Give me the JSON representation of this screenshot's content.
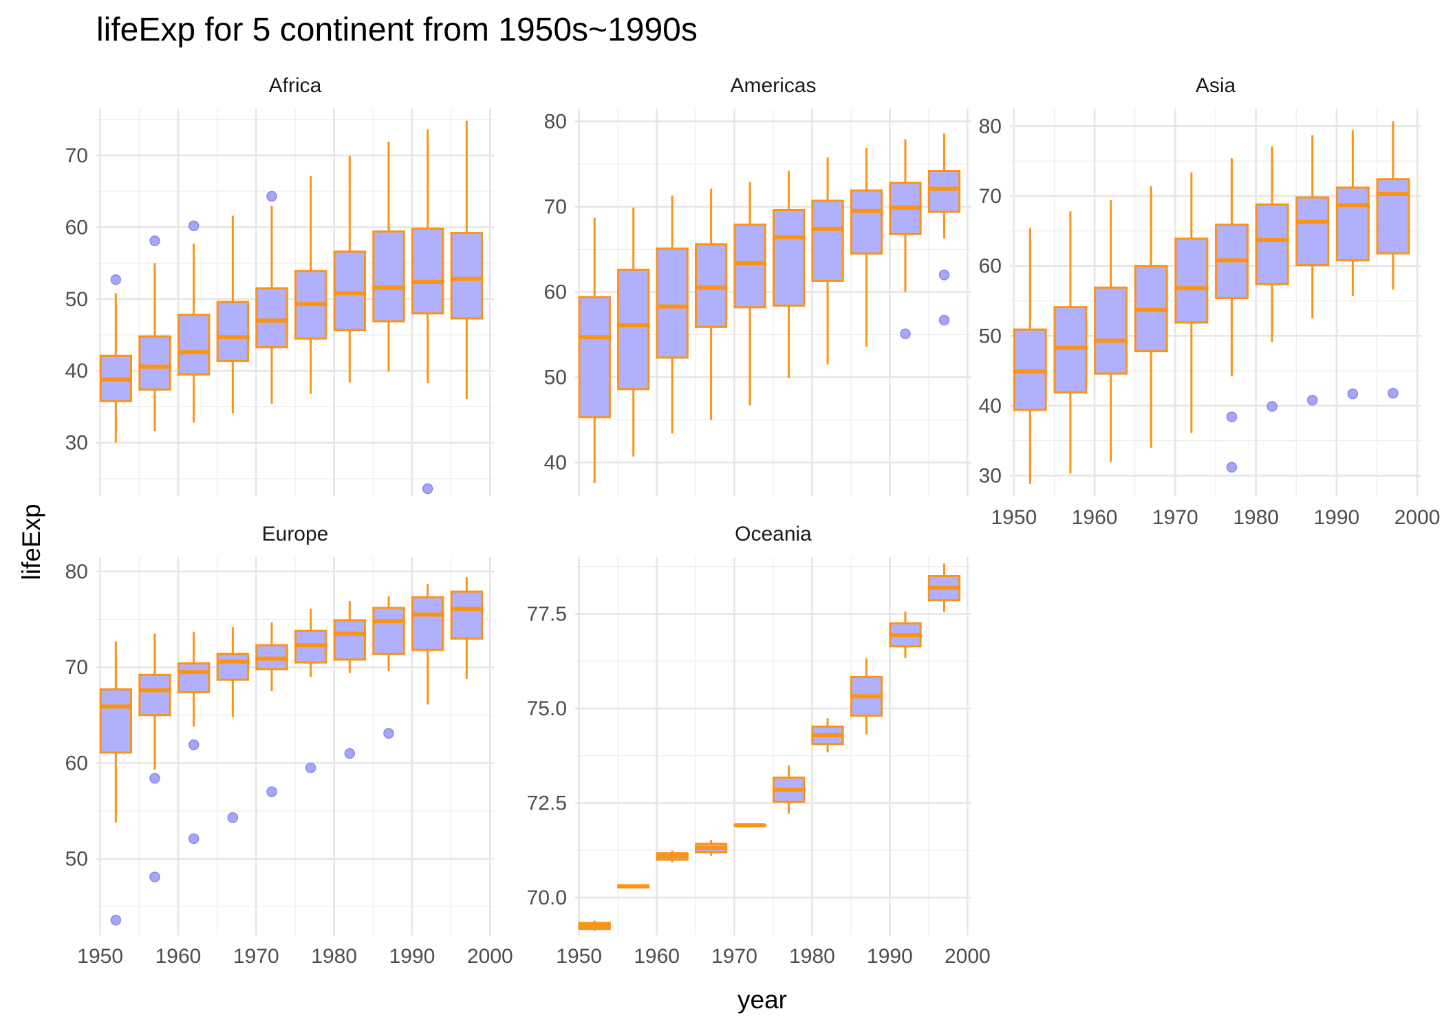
{
  "chart_data": {
    "type": "boxplot",
    "title": "lifeExp for 5 continent from 1950s~1990s",
    "xlabel": "year",
    "ylabel": "lifeExp",
    "x_ticks": [
      "1950",
      "1960",
      "1970",
      "1980",
      "1990",
      "2000"
    ],
    "x_tick_values": [
      1950,
      1960,
      1970,
      1980,
      1990,
      2000
    ],
    "xlim": [
      1949.5,
      2000.5
    ],
    "box_fill": "#b0b0fc",
    "box_outline": "#fb9315",
    "outlier_color": "#a6a6f7",
    "grid": true,
    "panels": [
      {
        "name": "Africa",
        "ylim": [
          22.5,
          76.5
        ],
        "y_tick_values": [
          30,
          40,
          50,
          60,
          70
        ],
        "y_ticks": [
          "30",
          "40",
          "50",
          "60",
          "70"
        ],
        "y_minor": [
          25,
          35,
          45,
          55,
          65,
          75
        ],
        "boxes": [
          {
            "year": 1952,
            "min": 30.0,
            "q1": 35.8,
            "median": 38.8,
            "q3": 42.1,
            "max": 50.8,
            "outliers": [
              52.7
            ]
          },
          {
            "year": 1957,
            "min": 31.6,
            "q1": 37.4,
            "median": 40.6,
            "q3": 44.8,
            "max": 55.0,
            "outliers": [
              58.1
            ]
          },
          {
            "year": 1962,
            "min": 32.8,
            "q1": 39.5,
            "median": 42.6,
            "q3": 47.8,
            "max": 57.7,
            "outliers": [
              60.2
            ]
          },
          {
            "year": 1967,
            "min": 34.1,
            "q1": 41.4,
            "median": 44.7,
            "q3": 49.6,
            "max": 61.6,
            "outliers": []
          },
          {
            "year": 1972,
            "min": 35.4,
            "q1": 43.3,
            "median": 47.0,
            "q3": 51.5,
            "max": 63.0,
            "outliers": [
              64.3
            ]
          },
          {
            "year": 1977,
            "min": 36.8,
            "q1": 44.5,
            "median": 49.3,
            "q3": 53.9,
            "max": 67.1,
            "outliers": []
          },
          {
            "year": 1982,
            "min": 38.4,
            "q1": 45.7,
            "median": 50.8,
            "q3": 56.6,
            "max": 69.9,
            "outliers": []
          },
          {
            "year": 1987,
            "min": 39.9,
            "q1": 46.9,
            "median": 51.6,
            "q3": 59.4,
            "max": 71.9,
            "outliers": []
          },
          {
            "year": 1992,
            "min": 38.3,
            "q1": 48.0,
            "median": 52.4,
            "q3": 59.8,
            "max": 73.6,
            "outliers": [
              23.6
            ]
          },
          {
            "year": 1997,
            "min": 36.1,
            "q1": 47.3,
            "median": 52.8,
            "q3": 59.2,
            "max": 74.8,
            "outliers": []
          }
        ]
      },
      {
        "name": "Americas",
        "ylim": [
          36.0,
          81.5
        ],
        "y_tick_values": [
          40,
          50,
          60,
          70,
          80
        ],
        "y_ticks": [
          "40",
          "50",
          "60",
          "70",
          "80"
        ],
        "y_minor": [
          45,
          55,
          65,
          75
        ],
        "boxes": [
          {
            "year": 1952,
            "min": 37.6,
            "q1": 45.3,
            "median": 54.7,
            "q3": 59.4,
            "max": 68.7,
            "outliers": []
          },
          {
            "year": 1957,
            "min": 40.7,
            "q1": 48.6,
            "median": 56.1,
            "q3": 62.6,
            "max": 69.9,
            "outliers": []
          },
          {
            "year": 1962,
            "min": 43.4,
            "q1": 52.3,
            "median": 58.3,
            "q3": 65.1,
            "max": 71.3,
            "outliers": []
          },
          {
            "year": 1967,
            "min": 45.0,
            "q1": 55.9,
            "median": 60.5,
            "q3": 65.6,
            "max": 72.1,
            "outliers": []
          },
          {
            "year": 1972,
            "min": 46.7,
            "q1": 58.2,
            "median": 63.4,
            "q3": 67.9,
            "max": 72.9,
            "outliers": []
          },
          {
            "year": 1977,
            "min": 49.9,
            "q1": 58.4,
            "median": 66.4,
            "q3": 69.6,
            "max": 74.2,
            "outliers": []
          },
          {
            "year": 1982,
            "min": 51.5,
            "q1": 61.3,
            "median": 67.4,
            "q3": 70.7,
            "max": 75.8,
            "outliers": []
          },
          {
            "year": 1987,
            "min": 53.6,
            "q1": 64.5,
            "median": 69.5,
            "q3": 71.9,
            "max": 76.9,
            "outliers": []
          },
          {
            "year": 1992,
            "min": 60.0,
            "q1": 66.8,
            "median": 69.9,
            "q3": 72.8,
            "max": 77.9,
            "outliers": [
              55.1
            ]
          },
          {
            "year": 1997,
            "min": 66.3,
            "q1": 69.4,
            "median": 72.1,
            "q3": 74.2,
            "max": 78.6,
            "outliers": [
              62.0,
              56.7
            ]
          }
        ]
      },
      {
        "name": "Asia",
        "ylim": [
          27.0,
          82.5
        ],
        "y_tick_values": [
          30,
          40,
          50,
          60,
          70,
          80
        ],
        "y_ticks": [
          "30",
          "40",
          "50",
          "60",
          "70",
          "80"
        ],
        "y_minor": [
          35,
          45,
          55,
          65,
          75
        ],
        "boxes": [
          {
            "year": 1952,
            "min": 28.8,
            "q1": 39.4,
            "median": 44.9,
            "q3": 50.9,
            "max": 65.4,
            "outliers": []
          },
          {
            "year": 1957,
            "min": 30.3,
            "q1": 41.9,
            "median": 48.3,
            "q3": 54.1,
            "max": 67.8,
            "outliers": []
          },
          {
            "year": 1962,
            "min": 32.0,
            "q1": 44.6,
            "median": 49.3,
            "q3": 56.9,
            "max": 69.4,
            "outliers": []
          },
          {
            "year": 1967,
            "min": 34.0,
            "q1": 47.8,
            "median": 53.7,
            "q3": 60.0,
            "max": 71.4,
            "outliers": []
          },
          {
            "year": 1972,
            "min": 36.1,
            "q1": 51.9,
            "median": 56.8,
            "q3": 63.9,
            "max": 73.4,
            "outliers": []
          },
          {
            "year": 1977,
            "min": 44.2,
            "q1": 55.4,
            "median": 60.8,
            "q3": 65.9,
            "max": 75.4,
            "outliers": [
              38.4,
              31.2
            ]
          },
          {
            "year": 1982,
            "min": 49.1,
            "q1": 57.4,
            "median": 63.7,
            "q3": 68.8,
            "max": 77.1,
            "outliers": [
              39.9
            ]
          },
          {
            "year": 1987,
            "min": 52.5,
            "q1": 60.1,
            "median": 66.3,
            "q3": 69.8,
            "max": 78.7,
            "outliers": [
              40.8
            ]
          },
          {
            "year": 1992,
            "min": 55.7,
            "q1": 60.8,
            "median": 68.7,
            "q3": 71.2,
            "max": 79.4,
            "outliers": [
              41.7
            ]
          },
          {
            "year": 1997,
            "min": 56.6,
            "q1": 61.8,
            "median": 70.3,
            "q3": 72.4,
            "max": 80.7,
            "outliers": [
              41.8
            ]
          }
        ]
      },
      {
        "name": "Europe",
        "ylim": [
          42.0,
          81.5
        ],
        "y_tick_values": [
          50,
          60,
          70,
          80
        ],
        "y_ticks": [
          "50",
          "60",
          "70",
          "80"
        ],
        "y_minor": [
          45,
          55,
          65,
          75
        ],
        "boxes": [
          {
            "year": 1952,
            "min": 53.8,
            "q1": 61.1,
            "median": 65.9,
            "q3": 67.7,
            "max": 72.7,
            "outliers": [
              43.6
            ]
          },
          {
            "year": 1957,
            "min": 59.3,
            "q1": 65.0,
            "median": 67.6,
            "q3": 69.2,
            "max": 73.5,
            "outliers": [
              58.4,
              48.1
            ]
          },
          {
            "year": 1962,
            "min": 63.8,
            "q1": 67.4,
            "median": 69.5,
            "q3": 70.4,
            "max": 73.7,
            "outliers": [
              61.9,
              52.1
            ]
          },
          {
            "year": 1967,
            "min": 64.8,
            "q1": 68.7,
            "median": 70.6,
            "q3": 71.4,
            "max": 74.2,
            "outliers": [
              54.3
            ]
          },
          {
            "year": 1972,
            "min": 67.5,
            "q1": 69.8,
            "median": 70.9,
            "q3": 72.3,
            "max": 74.7,
            "outliers": [
              57.0
            ]
          },
          {
            "year": 1977,
            "min": 69.0,
            "q1": 70.5,
            "median": 72.3,
            "q3": 73.8,
            "max": 76.1,
            "outliers": [
              59.5
            ]
          },
          {
            "year": 1982,
            "min": 69.4,
            "q1": 70.8,
            "median": 73.5,
            "q3": 74.9,
            "max": 76.9,
            "outliers": [
              61.0
            ]
          },
          {
            "year": 1987,
            "min": 69.6,
            "q1": 71.4,
            "median": 74.8,
            "q3": 76.2,
            "max": 77.4,
            "outliers": [
              63.1
            ]
          },
          {
            "year": 1992,
            "min": 66.1,
            "q1": 71.8,
            "median": 75.5,
            "q3": 77.3,
            "max": 78.7,
            "outliers": []
          },
          {
            "year": 1997,
            "min": 68.8,
            "q1": 73.0,
            "median": 76.1,
            "q3": 77.9,
            "max": 79.4,
            "outliers": []
          }
        ]
      },
      {
        "name": "Oceania",
        "ylim": [
          69.0,
          79.0
        ],
        "y_tick_values": [
          70.0,
          72.5,
          75.0,
          77.5
        ],
        "y_ticks": [
          "70.0",
          "72.5",
          "75.0",
          "77.5"
        ],
        "y_minor": [
          71.25,
          73.75,
          76.25,
          78.75
        ],
        "boxes": [
          {
            "year": 1952,
            "min": 69.12,
            "q1": 69.17,
            "median": 69.25,
            "q3": 69.33,
            "max": 69.39,
            "outliers": []
          },
          {
            "year": 1957,
            "min": 70.26,
            "q1": 70.27,
            "median": 70.3,
            "q3": 70.32,
            "max": 70.33,
            "outliers": []
          },
          {
            "year": 1962,
            "min": 70.93,
            "q1": 71.0,
            "median": 71.09,
            "q3": 71.17,
            "max": 71.24,
            "outliers": []
          },
          {
            "year": 1967,
            "min": 71.1,
            "q1": 71.2,
            "median": 71.31,
            "q3": 71.42,
            "max": 71.52,
            "outliers": []
          },
          {
            "year": 1972,
            "min": 71.89,
            "q1": 71.9,
            "median": 71.91,
            "q3": 71.92,
            "max": 71.93,
            "outliers": []
          },
          {
            "year": 1977,
            "min": 72.22,
            "q1": 72.53,
            "median": 72.85,
            "q3": 73.17,
            "max": 73.49,
            "outliers": []
          },
          {
            "year": 1982,
            "min": 73.84,
            "q1": 74.06,
            "median": 74.29,
            "q3": 74.52,
            "max": 74.74,
            "outliers": []
          },
          {
            "year": 1987,
            "min": 74.32,
            "q1": 74.81,
            "median": 75.32,
            "q3": 75.83,
            "max": 76.32,
            "outliers": []
          },
          {
            "year": 1992,
            "min": 76.33,
            "q1": 76.64,
            "median": 76.94,
            "q3": 77.25,
            "max": 77.56,
            "outliers": []
          },
          {
            "year": 1997,
            "min": 77.55,
            "q1": 77.86,
            "median": 78.19,
            "q3": 78.5,
            "max": 78.83,
            "outliers": []
          }
        ]
      }
    ]
  }
}
